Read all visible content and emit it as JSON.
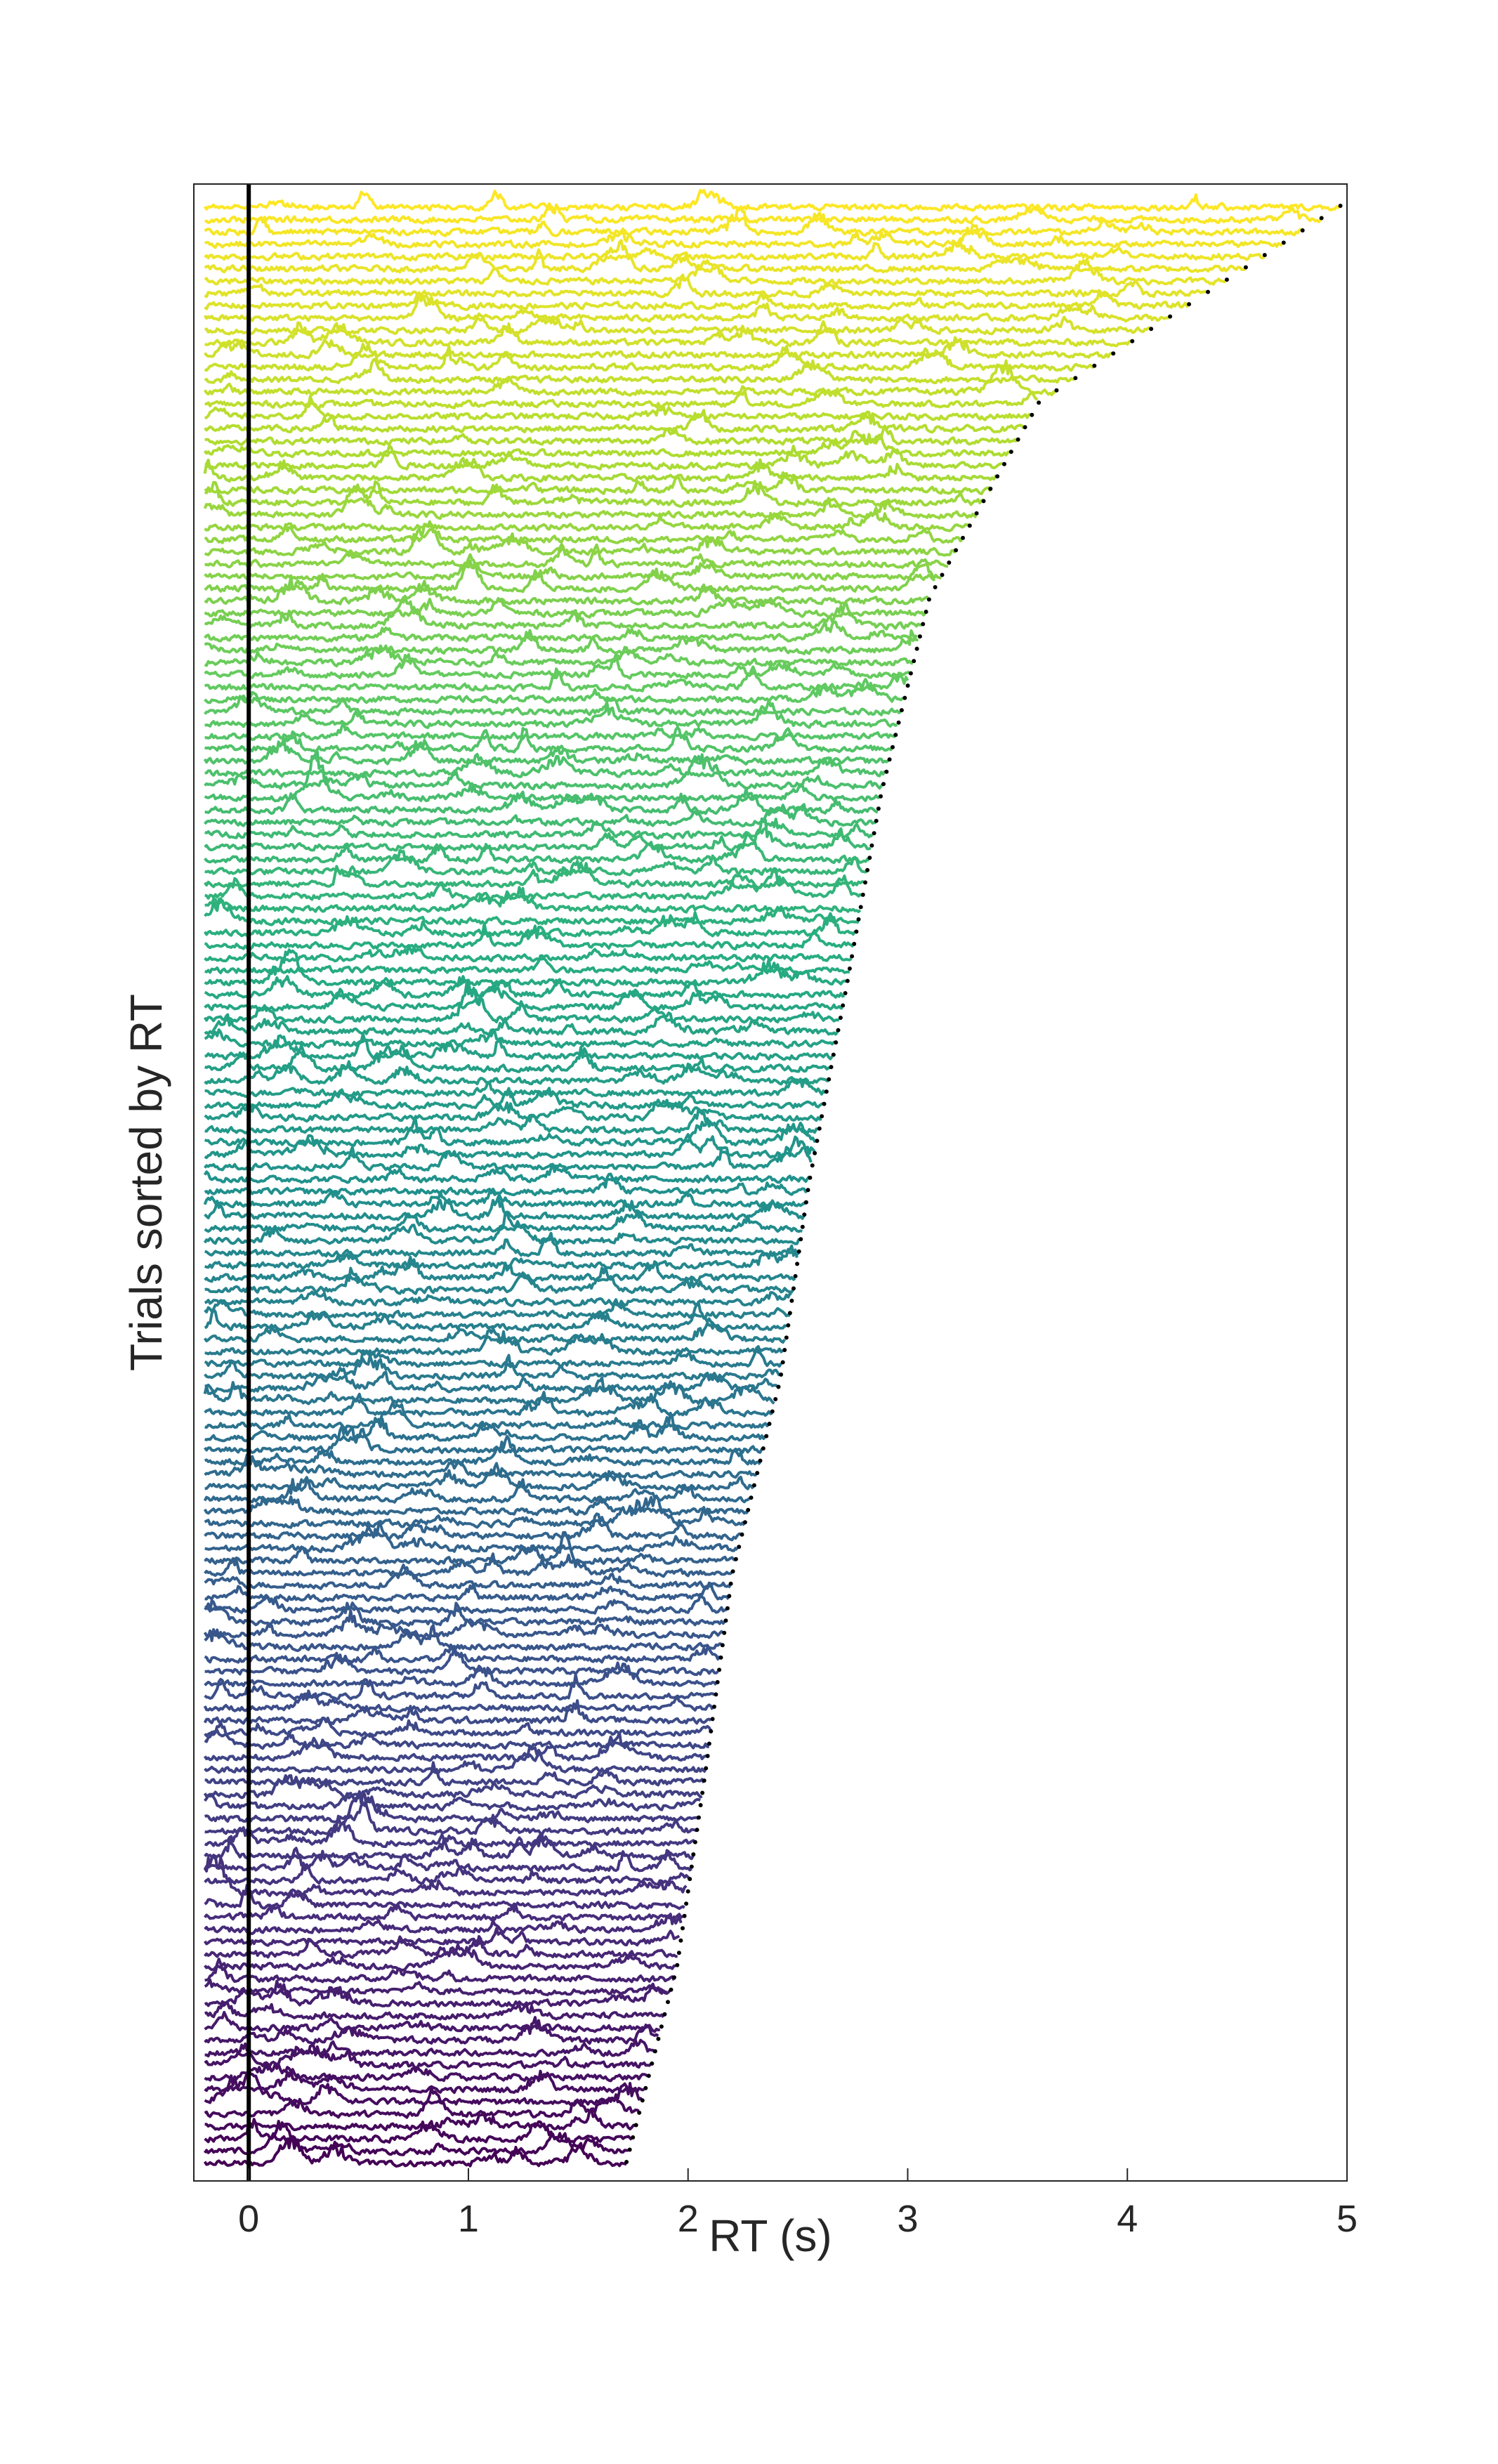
{
  "chart_data": {
    "type": "line",
    "title": "",
    "xlabel": "RT (s)",
    "ylabel": "Trials sorted by RT",
    "xlim": [
      -0.25,
      5.0
    ],
    "xticks": [
      0,
      1,
      2,
      3,
      4,
      5
    ],
    "xtick_labels": [
      "0",
      "1",
      "2",
      "3",
      "4",
      "5"
    ],
    "n_trials": 160,
    "rt_min": 1.72,
    "rt_max": 4.97,
    "trace_start": -0.2,
    "rt_curve": [
      [
        0,
        1.72
      ],
      [
        0.1,
        1.95
      ],
      [
        0.2,
        2.08
      ],
      [
        0.3,
        2.2
      ],
      [
        0.4,
        2.42
      ],
      [
        0.5,
        2.55
      ],
      [
        0.6,
        2.72
      ],
      [
        0.7,
        2.88
      ],
      [
        0.8,
        3.1
      ],
      [
        0.9,
        3.6
      ],
      [
        1.0,
        4.97
      ]
    ],
    "reference_line": {
      "x": 0,
      "color": "#000000"
    },
    "rt_markers": {
      "style": "dotted",
      "color": "#000000"
    },
    "grid": false,
    "legend": "none",
    "colormap": "viridis",
    "colormap_stops": [
      "#440154",
      "#472d7b",
      "#3b528b",
      "#2c728e",
      "#21918c",
      "#28ae80",
      "#5ec962",
      "#addc30",
      "#fde725"
    ],
    "order": "bottom = shortest RT (purple), top = longest RT (yellow)"
  }
}
